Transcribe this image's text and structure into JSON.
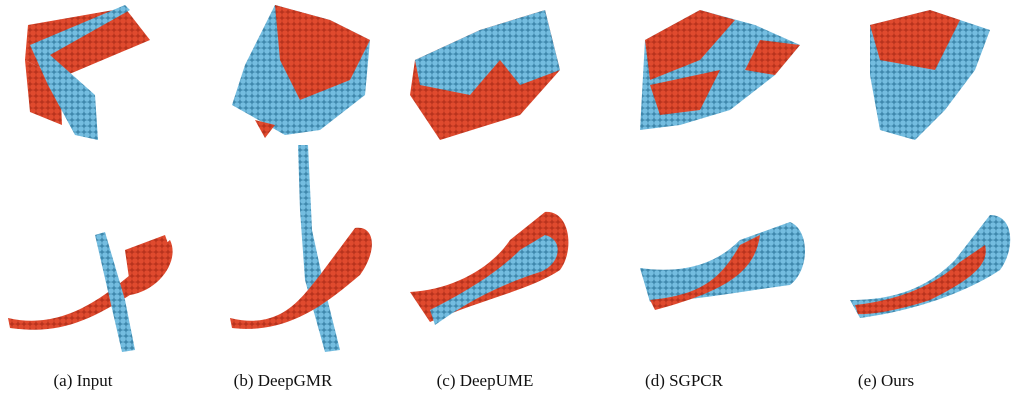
{
  "captions": [
    "(a) Input",
    "(b) DeepGMR",
    "(c) DeepUME",
    "(d) SGPCR",
    "(e) Ours"
  ]
}
